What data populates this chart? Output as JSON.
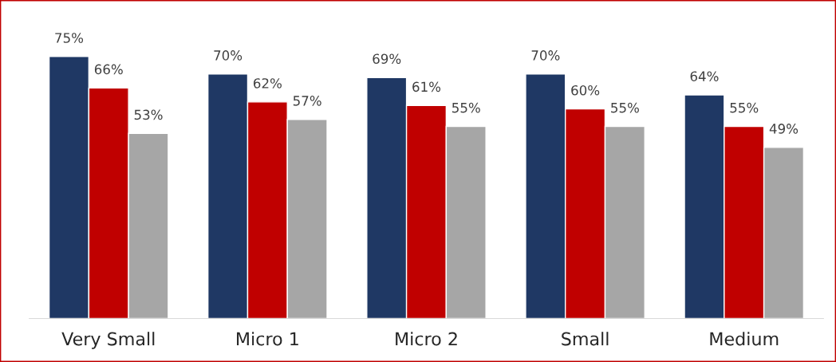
{
  "chart_data": {
    "type": "bar",
    "categories": [
      "Very Small",
      "Micro 1",
      "Micro 2",
      "Small",
      "Medium"
    ],
    "series": [
      {
        "color": "#1f3864",
        "values": [
          75,
          70,
          69,
          70,
          64
        ],
        "value_labels": [
          "75%",
          "70%",
          "69%",
          "70%",
          "64%"
        ]
      },
      {
        "color": "#c00000",
        "values": [
          66,
          62,
          61,
          60,
          55
        ],
        "value_labels": [
          "66%",
          "62%",
          "61%",
          "60%",
          "55%"
        ]
      },
      {
        "color": "#a6a6a6",
        "values": [
          53,
          57,
          55,
          55,
          49
        ],
        "value_labels": [
          "53%",
          "57%",
          "55%",
          "55%",
          "49%"
        ]
      }
    ],
    "tick_labels": "x"
  }
}
